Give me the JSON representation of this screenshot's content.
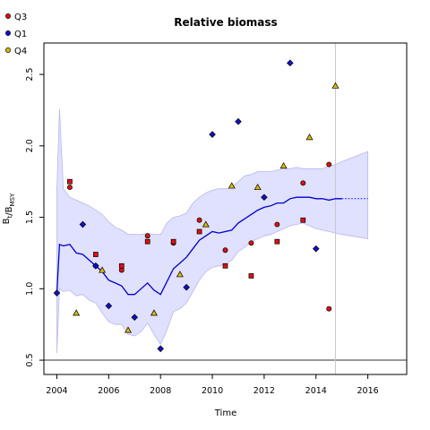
{
  "chart_data": {
    "type": "scatter",
    "title": "Relative biomass",
    "xlabel": "Time",
    "ylabel": "B_t/B_MSY",
    "xlim": [
      2003.5,
      2017.5
    ],
    "ylim": [
      0.4,
      2.72
    ],
    "x_ticks": [
      2004,
      2006,
      2008,
      2010,
      2012,
      2014,
      2016
    ],
    "y_ticks": [
      0.5,
      1.0,
      1.5,
      2.0,
      2.5
    ],
    "x_tick_labels": [
      "2004",
      "2006",
      "2008",
      "2010",
      "2012",
      "2014",
      "2016"
    ],
    "y_tick_labels": [
      "0.5",
      "1.0",
      "1.5",
      "2.0",
      "2.5"
    ],
    "reference_line_y": 0.5,
    "vline_x": 2014.75,
    "legend": {
      "placement": "top-left-outside",
      "items": [
        {
          "label": "Q3",
          "color": "#dd1111",
          "shape": "circle"
        },
        {
          "label": "Q1",
          "color": "#1111cc",
          "shape": "circle"
        },
        {
          "label": "Q4",
          "color": "#ddbb00",
          "shape": "circle"
        }
      ]
    },
    "median_line": {
      "color": "#0000cc",
      "x": [
        2004.0,
        2004.1,
        2004.25,
        2004.5,
        2004.75,
        2005.0,
        2005.25,
        2005.5,
        2005.75,
        2006.0,
        2006.25,
        2006.5,
        2006.75,
        2007.0,
        2007.25,
        2007.5,
        2007.75,
        2008.0,
        2008.25,
        2008.5,
        2008.75,
        2009.0,
        2009.25,
        2009.5,
        2009.75,
        2010.0,
        2010.25,
        2010.5,
        2010.75,
        2011.0,
        2011.25,
        2011.5,
        2011.75,
        2012.0,
        2012.25,
        2012.5,
        2012.75,
        2013.0,
        2013.25,
        2013.5,
        2013.75,
        2014.0,
        2014.25,
        2014.5,
        2014.75,
        2015.0
      ],
      "y": [
        0.97,
        1.31,
        1.3,
        1.31,
        1.25,
        1.24,
        1.2,
        1.16,
        1.12,
        1.06,
        1.04,
        1.02,
        0.96,
        0.96,
        1.0,
        1.04,
        0.99,
        0.96,
        1.05,
        1.14,
        1.18,
        1.22,
        1.28,
        1.34,
        1.37,
        1.4,
        1.39,
        1.4,
        1.41,
        1.46,
        1.49,
        1.52,
        1.55,
        1.57,
        1.58,
        1.6,
        1.6,
        1.63,
        1.64,
        1.64,
        1.64,
        1.63,
        1.63,
        1.62,
        1.63,
        1.63
      ]
    },
    "prediction_line": {
      "x": [
        2015.0,
        2016.0
      ],
      "y": [
        1.63,
        1.63
      ],
      "style": "dotted"
    },
    "confidence_band": {
      "fill": "#e0e0ff",
      "edge": "#b8b8f0",
      "x": [
        2004.0,
        2004.1,
        2004.25,
        2004.5,
        2004.75,
        2005.0,
        2005.25,
        2005.5,
        2005.75,
        2006.0,
        2006.25,
        2006.5,
        2006.75,
        2007.0,
        2007.25,
        2007.5,
        2007.75,
        2008.0,
        2008.25,
        2008.5,
        2008.75,
        2009.0,
        2009.25,
        2009.5,
        2009.75,
        2010.0,
        2010.25,
        2010.5,
        2010.75,
        2011.0,
        2011.25,
        2011.5,
        2011.75,
        2012.0,
        2012.25,
        2012.5,
        2012.75,
        2013.0,
        2013.25,
        2013.5,
        2013.75,
        2014.0,
        2014.25,
        2014.5,
        2014.75,
        2015.0,
        2016.0
      ],
      "upper": [
        1.7,
        2.26,
        1.7,
        1.64,
        1.62,
        1.6,
        1.58,
        1.55,
        1.52,
        1.47,
        1.43,
        1.41,
        1.38,
        1.38,
        1.38,
        1.39,
        1.38,
        1.38,
        1.46,
        1.5,
        1.51,
        1.53,
        1.6,
        1.64,
        1.67,
        1.69,
        1.7,
        1.7,
        1.71,
        1.75,
        1.79,
        1.8,
        1.82,
        1.82,
        1.82,
        1.83,
        1.84,
        1.84,
        1.85,
        1.84,
        1.84,
        1.84,
        1.84,
        1.86,
        1.87,
        1.89,
        1.96
      ],
      "lower": [
        0.55,
        1.0,
        0.98,
        0.99,
        0.95,
        0.96,
        0.92,
        0.9,
        0.83,
        0.77,
        0.75,
        0.75,
        0.68,
        0.67,
        0.7,
        0.76,
        0.68,
        0.61,
        0.71,
        0.84,
        0.86,
        0.9,
        0.98,
        1.06,
        1.12,
        1.15,
        1.16,
        1.17,
        1.2,
        1.26,
        1.29,
        1.33,
        1.35,
        1.37,
        1.38,
        1.4,
        1.42,
        1.44,
        1.45,
        1.46,
        1.44,
        1.42,
        1.41,
        1.4,
        1.39,
        1.38,
        1.35
      ]
    },
    "series": [
      {
        "name": "Q3",
        "marker": "circle",
        "color": "#dd1111",
        "points": [
          [
            2004.5,
            1.71
          ],
          [
            2005.5,
            1.16
          ],
          [
            2006.5,
            1.13
          ],
          [
            2007.5,
            1.37
          ],
          [
            2008.5,
            1.32
          ],
          [
            2009.5,
            1.48
          ],
          [
            2010.5,
            1.27
          ],
          [
            2011.5,
            1.32
          ],
          [
            2012.5,
            1.45
          ],
          [
            2013.5,
            1.74
          ],
          [
            2014.5,
            1.87
          ],
          [
            2014.5,
            0.86
          ]
        ]
      },
      {
        "name": "Q3",
        "marker": "square",
        "color": "#dd1111",
        "points": [
          [
            2004.5,
            1.75
          ],
          [
            2005.5,
            1.24
          ],
          [
            2006.5,
            1.16
          ],
          [
            2007.5,
            1.33
          ],
          [
            2008.5,
            1.33
          ],
          [
            2009.5,
            1.4
          ],
          [
            2010.5,
            1.16
          ],
          [
            2011.5,
            1.09
          ],
          [
            2012.5,
            1.33
          ],
          [
            2013.5,
            1.48
          ]
        ]
      },
      {
        "name": "Q1",
        "marker": "diamond",
        "color": "#1111cc",
        "points": [
          [
            2004.0,
            0.97
          ],
          [
            2005.0,
            1.45
          ],
          [
            2005.5,
            1.16
          ],
          [
            2006.0,
            0.88
          ],
          [
            2007.0,
            0.8
          ],
          [
            2008.0,
            0.58
          ],
          [
            2009.0,
            1.01
          ],
          [
            2010.0,
            2.08
          ],
          [
            2011.0,
            2.17
          ],
          [
            2012.0,
            1.64
          ],
          [
            2013.0,
            2.58
          ],
          [
            2014.0,
            1.28
          ]
        ]
      },
      {
        "name": "Q4",
        "marker": "triangle",
        "color": "#ddbb00",
        "points": [
          [
            2004.75,
            0.83
          ],
          [
            2005.75,
            1.13
          ],
          [
            2006.75,
            0.71
          ],
          [
            2007.75,
            0.83
          ],
          [
            2008.75,
            1.1
          ],
          [
            2009.75,
            1.45
          ],
          [
            2010.75,
            1.72
          ],
          [
            2011.75,
            1.71
          ],
          [
            2012.75,
            1.86
          ],
          [
            2013.75,
            2.06
          ],
          [
            2014.75,
            2.42
          ]
        ]
      }
    ]
  }
}
